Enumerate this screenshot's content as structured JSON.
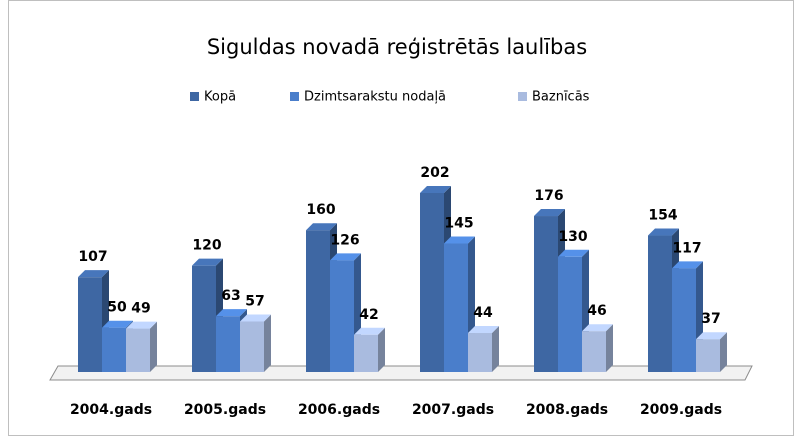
{
  "chart_data": {
    "type": "bar",
    "title": "Siguldas novadā reģistrētās laulības",
    "categories": [
      "2004.gads",
      "2005.gads",
      "2006.gads",
      "2007.gads",
      "2008.gads",
      "2009.gads"
    ],
    "series": [
      {
        "name": "Kopā",
        "color": "#3e67a3",
        "values": [
          107,
          120,
          160,
          202,
          176,
          154
        ]
      },
      {
        "name": "Dzimtsarakstu nodaļā",
        "color": "#4a7ecb",
        "values": [
          50,
          63,
          126,
          145,
          130,
          117
        ]
      },
      {
        "name": "Baznīcās",
        "color": "#a9bbdf",
        "values": [
          49,
          57,
          42,
          44,
          46,
          37
        ]
      }
    ],
    "legend": "top"
  }
}
